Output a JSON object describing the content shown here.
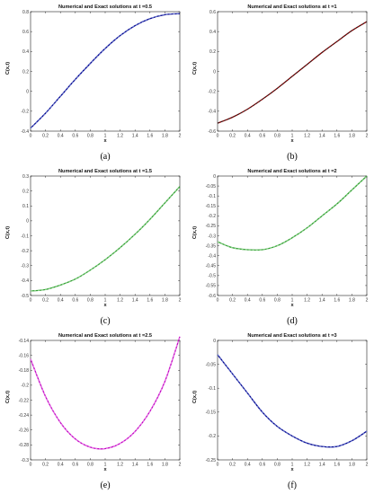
{
  "chart_data": [
    {
      "type": "line",
      "title": "Numerical and Exact solutions at t =0.5",
      "xlabel": "x",
      "ylabel": "C(x,t)",
      "caption": "(a)",
      "xlim": [
        0,
        2
      ],
      "ylim": [
        -0.4,
        0.8
      ],
      "xticks": [
        0,
        0.2,
        0.4,
        0.6,
        0.8,
        1,
        1.2,
        1.4,
        1.6,
        1.8,
        2
      ],
      "yticks": [
        -0.4,
        -0.2,
        0,
        0.2,
        0.4,
        0.6,
        0.8
      ],
      "exact_color": "#00008b",
      "numerical_color": "#6a7fd8",
      "series": [
        {
          "x": [
            0,
            0.2,
            0.4,
            0.6,
            0.8,
            1,
            1.2,
            1.4,
            1.6,
            1.8,
            2
          ],
          "values": [
            -0.37,
            -0.22,
            -0.05,
            0.12,
            0.28,
            0.43,
            0.56,
            0.66,
            0.73,
            0.77,
            0.78
          ]
        }
      ]
    },
    {
      "type": "line",
      "title": "Numerical and Exact solutions at t =1",
      "xlabel": "x",
      "ylabel": "C(x,t)",
      "caption": "(b)",
      "xlim": [
        0,
        2
      ],
      "ylim": [
        -0.6,
        0.6
      ],
      "xticks": [
        0,
        0.2,
        0.4,
        0.6,
        0.8,
        1,
        1.2,
        1.4,
        1.6,
        1.8,
        2
      ],
      "yticks": [
        -0.6,
        -0.4,
        -0.2,
        0,
        0.2,
        0.4,
        0.6
      ],
      "exact_color": "#8b0000",
      "numerical_color": "#222222",
      "series": [
        {
          "x": [
            0,
            0.2,
            0.4,
            0.6,
            0.8,
            1,
            1.2,
            1.4,
            1.6,
            1.8,
            2
          ],
          "values": [
            -0.52,
            -0.46,
            -0.38,
            -0.28,
            -0.17,
            -0.05,
            0.07,
            0.19,
            0.3,
            0.41,
            0.5
          ]
        }
      ]
    },
    {
      "type": "line",
      "title": "Numerical and Exact solutions at t =1.5",
      "xlabel": "x",
      "ylabel": "C(x,t)",
      "caption": "(c)",
      "xlim": [
        0,
        2
      ],
      "ylim": [
        -0.5,
        0.3
      ],
      "xticks": [
        0,
        0.2,
        0.4,
        0.6,
        0.8,
        1,
        1.2,
        1.4,
        1.6,
        1.8,
        2
      ],
      "yticks": [
        -0.5,
        -0.4,
        -0.3,
        -0.2,
        -0.1,
        0,
        0.1,
        0.2,
        0.3
      ],
      "exact_color": "#2e9b2e",
      "numerical_color": "#8fd98f",
      "series": [
        {
          "x": [
            0,
            0.2,
            0.4,
            0.6,
            0.8,
            1,
            1.2,
            1.4,
            1.6,
            1.8,
            2
          ],
          "values": [
            -0.47,
            -0.46,
            -0.43,
            -0.39,
            -0.33,
            -0.26,
            -0.18,
            -0.09,
            0.01,
            0.12,
            0.23
          ]
        }
      ]
    },
    {
      "type": "line",
      "title": "Numerical and Exact solutions at t =2",
      "xlabel": "x",
      "ylabel": "C(x,t)",
      "caption": "(d)",
      "xlim": [
        0,
        2
      ],
      "ylim": [
        -0.6,
        0
      ],
      "xticks": [
        0,
        0.2,
        0.4,
        0.6,
        0.8,
        1,
        1.2,
        1.4,
        1.6,
        1.8,
        2
      ],
      "yticks": [
        -0.6,
        -0.55,
        -0.5,
        -0.45,
        -0.4,
        -0.35,
        -0.3,
        -0.25,
        -0.2,
        -0.15,
        -0.1,
        -0.05,
        0
      ],
      "exact_color": "#2e9b2e",
      "numerical_color": "#8fd98f",
      "series": [
        {
          "x": [
            0,
            0.2,
            0.4,
            0.6,
            0.8,
            1,
            1.2,
            1.4,
            1.6,
            1.8,
            2
          ],
          "values": [
            -0.33,
            -0.36,
            -0.37,
            -0.37,
            -0.35,
            -0.31,
            -0.26,
            -0.2,
            -0.14,
            -0.07,
            0
          ]
        }
      ]
    },
    {
      "type": "line",
      "title": "Numerical and Exact solutions at t =2.5",
      "xlabel": "x",
      "ylabel": "C(x,t)",
      "caption": "(e)",
      "xlim": [
        0,
        2
      ],
      "ylim": [
        -0.3,
        -0.14
      ],
      "xticks": [
        0,
        0.2,
        0.4,
        0.6,
        0.8,
        1,
        1.2,
        1.4,
        1.6,
        1.8,
        2
      ],
      "yticks": [
        -0.3,
        -0.28,
        -0.26,
        -0.24,
        -0.22,
        -0.2,
        -0.18,
        -0.16,
        -0.14
      ],
      "exact_color": "#c000c0",
      "numerical_color": "#f08cf0",
      "series": [
        {
          "x": [
            0,
            0.2,
            0.4,
            0.6,
            0.8,
            1,
            1.2,
            1.4,
            1.6,
            1.8,
            2
          ],
          "values": [
            -0.165,
            -0.215,
            -0.25,
            -0.272,
            -0.283,
            -0.285,
            -0.278,
            -0.262,
            -0.235,
            -0.195,
            -0.135
          ]
        }
      ]
    },
    {
      "type": "line",
      "title": "Numerical and Exact solutions at t =3",
      "xlabel": "x",
      "ylabel": "C(x,t)",
      "caption": "(f)",
      "xlim": [
        0,
        2
      ],
      "ylim": [
        -0.25,
        0
      ],
      "xticks": [
        0,
        0.2,
        0.4,
        0.6,
        0.8,
        1,
        1.2,
        1.4,
        1.6,
        1.8,
        2
      ],
      "yticks": [
        -0.25,
        -0.2,
        -0.15,
        -0.1,
        -0.05,
        0
      ],
      "exact_color": "#00008b",
      "numerical_color": "#6a7fd8",
      "series": [
        {
          "x": [
            0,
            0.2,
            0.4,
            0.6,
            0.8,
            1,
            1.2,
            1.4,
            1.6,
            1.8,
            2
          ],
          "values": [
            -0.03,
            -0.07,
            -0.11,
            -0.15,
            -0.18,
            -0.2,
            -0.215,
            -0.222,
            -0.222,
            -0.21,
            -0.19
          ]
        }
      ]
    }
  ]
}
